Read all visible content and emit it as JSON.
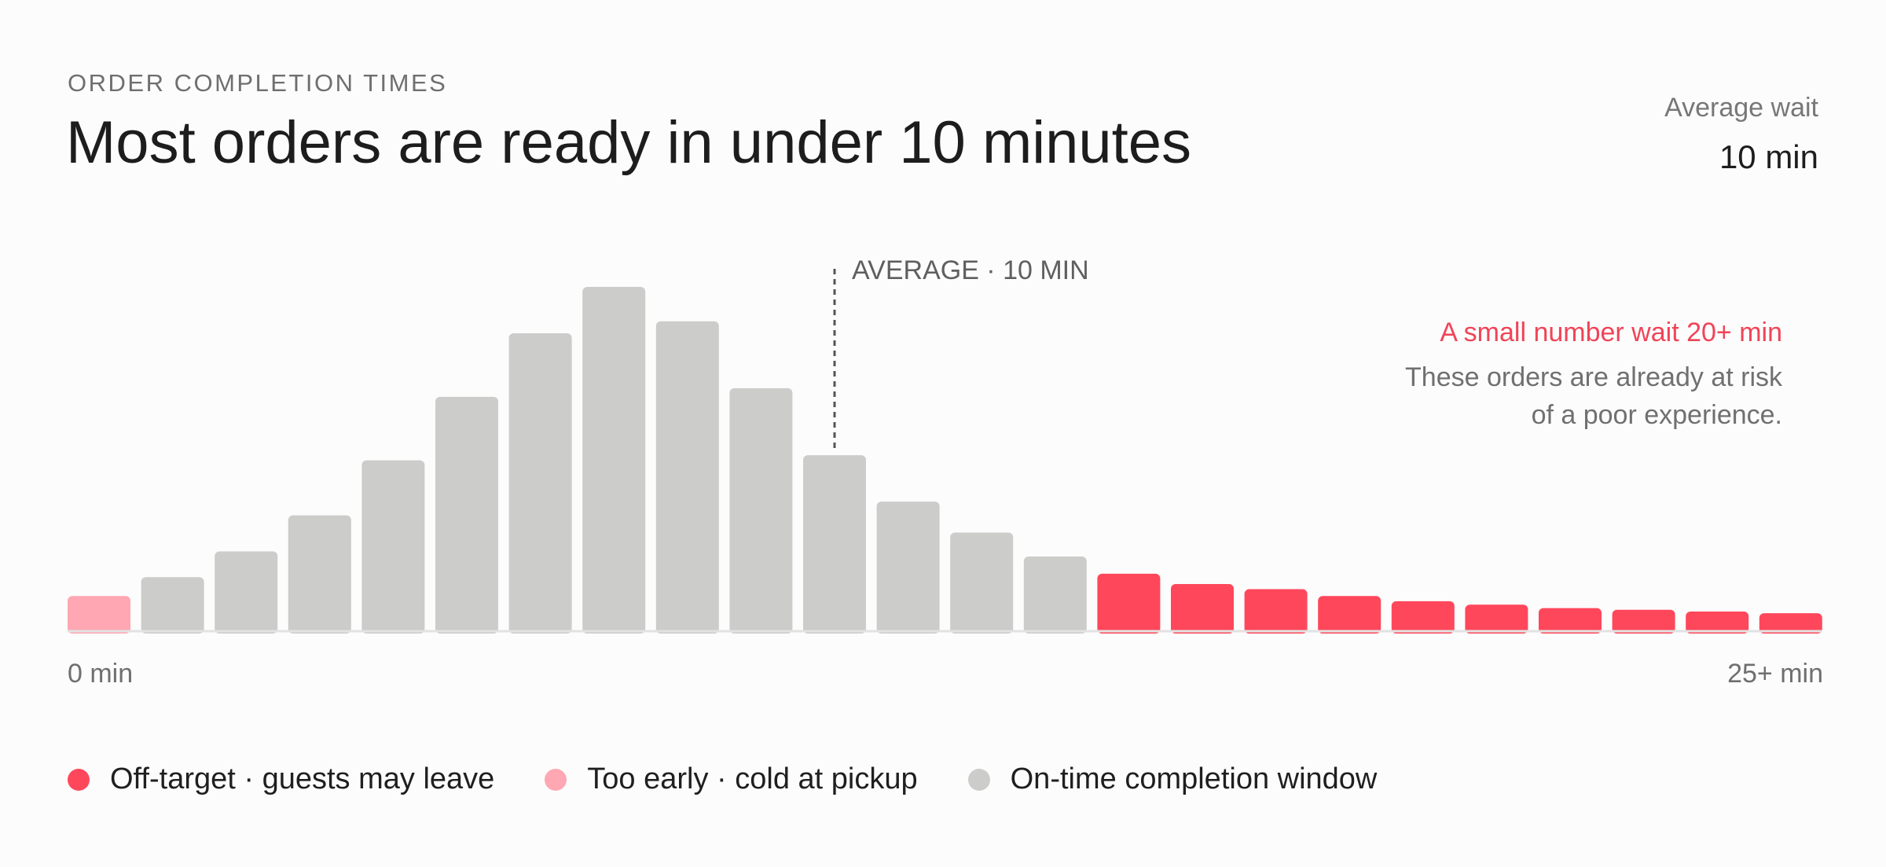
{
  "header": {
    "eyebrow": "ORDER COMPLETION TIMES",
    "title": "Most orders are ready in under 10 minutes"
  },
  "kpi": {
    "label": "Average wait",
    "value": "10 min"
  },
  "annotation": {
    "highlight": "A small number wait 20+ min",
    "line1": "These orders are already at risk",
    "line2": "of a poor experience."
  },
  "colors": {
    "off_target": "#ff475b",
    "too_early": "#ffa7b2",
    "on_time": "#cccccb",
    "average_line": "#555555",
    "baseline": "#e2e2e2"
  },
  "chart_data": {
    "type": "bar",
    "x_start_label": "0 min",
    "x_end_label": "25+ min",
    "average_label": "AVERAGE · 10 MIN",
    "average_bin": 10,
    "ylim": [
      0,
      100
    ],
    "bins": [
      {
        "value": 10,
        "status": "too_early"
      },
      {
        "value": 15.5,
        "status": "on_time"
      },
      {
        "value": 23,
        "status": "on_time"
      },
      {
        "value": 33.5,
        "status": "on_time"
      },
      {
        "value": 49.5,
        "status": "on_time"
      },
      {
        "value": 68,
        "status": "on_time"
      },
      {
        "value": 86.5,
        "status": "on_time"
      },
      {
        "value": 100,
        "status": "on_time"
      },
      {
        "value": 90,
        "status": "on_time"
      },
      {
        "value": 70.5,
        "status": "on_time"
      },
      {
        "value": 51,
        "status": "on_time"
      },
      {
        "value": 37.5,
        "status": "on_time"
      },
      {
        "value": 28.5,
        "status": "on_time"
      },
      {
        "value": 21.5,
        "status": "on_time"
      },
      {
        "value": 16.5,
        "status": "off_target"
      },
      {
        "value": 13.5,
        "status": "off_target"
      },
      {
        "value": 12,
        "status": "off_target"
      },
      {
        "value": 10,
        "status": "off_target"
      },
      {
        "value": 8.5,
        "status": "off_target"
      },
      {
        "value": 7.5,
        "status": "off_target"
      },
      {
        "value": 6.5,
        "status": "off_target"
      },
      {
        "value": 6,
        "status": "off_target"
      },
      {
        "value": 5.5,
        "status": "off_target"
      },
      {
        "value": 5,
        "status": "off_target"
      }
    ]
  },
  "legend": [
    {
      "label": "Off-target · guests may leave",
      "color": "#ff475b"
    },
    {
      "label": "Too early · cold at pickup",
      "color": "#ffa7b2"
    },
    {
      "label": "On-time completion window",
      "color": "#cccccb"
    }
  ]
}
